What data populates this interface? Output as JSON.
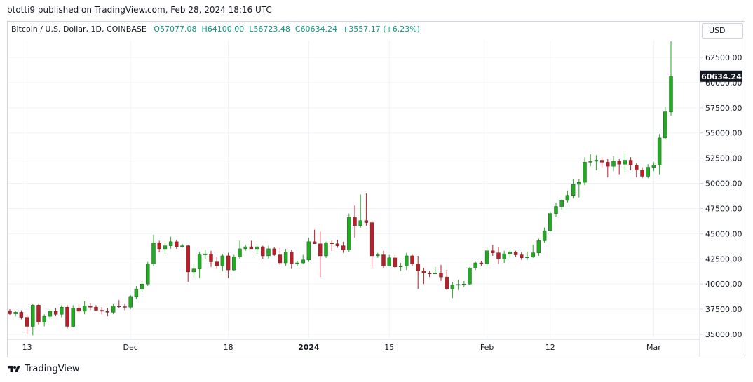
{
  "header": {
    "published": "btotti9 published on TradingView.com, Feb 28, 2024 18:16 UTC"
  },
  "legend": {
    "symbol": "Bitcoin / U.S. Dollar, 1D, COINBASE",
    "open": "O57077.08",
    "high": "H64100.00",
    "low": "L56723.48",
    "close": "C60634.24",
    "change": "+3557.17 (+6.23%)"
  },
  "currency": "USD",
  "last_price_label": "60634.24",
  "footer": {
    "brand": "TradingView"
  },
  "colors": {
    "up": "#22ab22",
    "down": "#c01b2a",
    "grid": "#f0f3fa",
    "axis": "#d1d4dc"
  },
  "chart_data": {
    "type": "candlestick",
    "title": "Bitcoin / U.S. Dollar, 1D, COINBASE",
    "y_ticks": [
      "35000.00",
      "37500.00",
      "40000.00",
      "42500.00",
      "45000.00",
      "47500.00",
      "50000.00",
      "52500.00",
      "55000.00",
      "57500.00",
      "60000.00",
      "62500.00"
    ],
    "ylim": [
      34900,
      65100
    ],
    "x_ticks": [
      {
        "label": "13",
        "day": 13
      },
      {
        "label": "Dec",
        "day": 31
      },
      {
        "label": "18",
        "day": 48
      },
      {
        "label": "2024",
        "day": 62
      },
      {
        "label": "15",
        "day": 76
      },
      {
        "label": "Feb",
        "day": 93
      },
      {
        "label": "12",
        "day": 104
      },
      {
        "label": "Mar",
        "day": 122
      }
    ],
    "xlim": [
      13,
      129
    ],
    "candles": [
      {
        "day": 10,
        "open": 37360,
        "high": 37500,
        "low": 36900,
        "close": 37050
      },
      {
        "day": 11,
        "open": 37050,
        "high": 37300,
        "low": 36800,
        "close": 37200
      },
      {
        "day": 12,
        "open": 37200,
        "high": 37400,
        "low": 36500,
        "close": 36700
      },
      {
        "day": 13,
        "open": 36700,
        "high": 37000,
        "low": 35000,
        "close": 35800
      },
      {
        "day": 14,
        "open": 35800,
        "high": 38000,
        "low": 34900,
        "close": 37900
      },
      {
        "day": 15,
        "open": 37900,
        "high": 38000,
        "low": 36000,
        "close": 36200
      },
      {
        "day": 16,
        "open": 36200,
        "high": 37000,
        "low": 35800,
        "close": 36800
      },
      {
        "day": 17,
        "open": 36800,
        "high": 37500,
        "low": 36500,
        "close": 37300
      },
      {
        "day": 18,
        "open": 37300,
        "high": 37600,
        "low": 36800,
        "close": 37000
      },
      {
        "day": 19,
        "open": 37000,
        "high": 37900,
        "low": 36700,
        "close": 37700
      },
      {
        "day": 20,
        "open": 37700,
        "high": 37900,
        "low": 35600,
        "close": 35800
      },
      {
        "day": 21,
        "open": 35800,
        "high": 37900,
        "low": 35700,
        "close": 37600
      },
      {
        "day": 22,
        "open": 37600,
        "high": 38000,
        "low": 37200,
        "close": 37300
      },
      {
        "day": 23,
        "open": 37300,
        "high": 38300,
        "low": 37000,
        "close": 37800
      },
      {
        "day": 24,
        "open": 37800,
        "high": 38100,
        "low": 37400,
        "close": 37700
      },
      {
        "day": 25,
        "open": 37700,
        "high": 37900,
        "low": 37300,
        "close": 37400
      },
      {
        "day": 26,
        "open": 37400,
        "high": 37700,
        "low": 37000,
        "close": 37300
      },
      {
        "day": 27,
        "open": 37300,
        "high": 37600,
        "low": 36800,
        "close": 37200
      },
      {
        "day": 28,
        "open": 37200,
        "high": 38000,
        "low": 37000,
        "close": 37800
      },
      {
        "day": 29,
        "open": 37800,
        "high": 38400,
        "low": 37600,
        "close": 37750
      },
      {
        "day": 30,
        "open": 37750,
        "high": 38000,
        "low": 37400,
        "close": 37700
      },
      {
        "day": 31,
        "open": 37700,
        "high": 38900,
        "low": 37500,
        "close": 38700
      },
      {
        "day": 32,
        "open": 38700,
        "high": 39800,
        "low": 38500,
        "close": 39500
      },
      {
        "day": 33,
        "open": 39500,
        "high": 40300,
        "low": 39200,
        "close": 40000
      },
      {
        "day": 34,
        "open": 40000,
        "high": 42200,
        "low": 39800,
        "close": 42000
      },
      {
        "day": 35,
        "open": 42000,
        "high": 44900,
        "low": 41800,
        "close": 44100
      },
      {
        "day": 36,
        "open": 44100,
        "high": 44300,
        "low": 43200,
        "close": 43500
      },
      {
        "day": 37,
        "open": 43500,
        "high": 44100,
        "low": 43000,
        "close": 43800
      },
      {
        "day": 38,
        "open": 43800,
        "high": 44700,
        "low": 43500,
        "close": 44200
      },
      {
        "day": 39,
        "open": 44200,
        "high": 44400,
        "low": 43500,
        "close": 43700
      },
      {
        "day": 40,
        "open": 43700,
        "high": 44000,
        "low": 43600,
        "close": 43800
      },
      {
        "day": 41,
        "open": 43800,
        "high": 43900,
        "low": 40200,
        "close": 41200
      },
      {
        "day": 42,
        "open": 41200,
        "high": 42000,
        "low": 40700,
        "close": 41500
      },
      {
        "day": 43,
        "open": 41500,
        "high": 43200,
        "low": 40600,
        "close": 42900
      },
      {
        "day": 44,
        "open": 42900,
        "high": 43400,
        "low": 42500,
        "close": 43000
      },
      {
        "day": 45,
        "open": 43000,
        "high": 43300,
        "low": 41700,
        "close": 42200
      },
      {
        "day": 46,
        "open": 42200,
        "high": 42700,
        "low": 41500,
        "close": 41800
      },
      {
        "day": 47,
        "open": 41800,
        "high": 43000,
        "low": 41300,
        "close": 42800
      },
      {
        "day": 48,
        "open": 42800,
        "high": 43100,
        "low": 40600,
        "close": 41400
      },
      {
        "day": 49,
        "open": 41400,
        "high": 42900,
        "low": 41300,
        "close": 42700
      },
      {
        "day": 50,
        "open": 42700,
        "high": 44300,
        "low": 42500,
        "close": 43500
      },
      {
        "day": 51,
        "open": 43500,
        "high": 43900,
        "low": 43300,
        "close": 43700
      },
      {
        "day": 52,
        "open": 43700,
        "high": 44300,
        "low": 43500,
        "close": 43500
      },
      {
        "day": 53,
        "open": 43500,
        "high": 43800,
        "low": 43000,
        "close": 43700
      },
      {
        "day": 54,
        "open": 43700,
        "high": 43800,
        "low": 42500,
        "close": 42800
      },
      {
        "day": 55,
        "open": 42800,
        "high": 43800,
        "low": 42500,
        "close": 43500
      },
      {
        "day": 56,
        "open": 43500,
        "high": 43700,
        "low": 42800,
        "close": 42900
      },
      {
        "day": 57,
        "open": 42900,
        "high": 43600,
        "low": 41900,
        "close": 42100
      },
      {
        "day": 58,
        "open": 42100,
        "high": 43500,
        "low": 41800,
        "close": 43200
      },
      {
        "day": 59,
        "open": 43200,
        "high": 43400,
        "low": 41500,
        "close": 42000
      },
      {
        "day": 60,
        "open": 42000,
        "high": 42300,
        "low": 41800,
        "close": 42100
      },
      {
        "day": 61,
        "open": 42100,
        "high": 42900,
        "low": 42000,
        "close": 42400
      },
      {
        "day": 62,
        "open": 42400,
        "high": 44600,
        "low": 42200,
        "close": 44200
      },
      {
        "day": 63,
        "open": 44200,
        "high": 45400,
        "low": 44000,
        "close": 44000
      },
      {
        "day": 64,
        "open": 44000,
        "high": 45200,
        "low": 40700,
        "close": 42800
      },
      {
        "day": 65,
        "open": 42800,
        "high": 44200,
        "low": 42600,
        "close": 44100
      },
      {
        "day": 66,
        "open": 44100,
        "high": 44300,
        "low": 43300,
        "close": 44000
      },
      {
        "day": 67,
        "open": 44000,
        "high": 44400,
        "low": 43600,
        "close": 43800
      },
      {
        "day": 68,
        "open": 43800,
        "high": 44200,
        "low": 43100,
        "close": 43400
      },
      {
        "day": 69,
        "open": 43400,
        "high": 47000,
        "low": 43200,
        "close": 46600
      },
      {
        "day": 70,
        "open": 46600,
        "high": 47800,
        "low": 44600,
        "close": 45800
      },
      {
        "day": 71,
        "open": 45800,
        "high": 48900,
        "low": 45600,
        "close": 46300
      },
      {
        "day": 72,
        "open": 46300,
        "high": 49000,
        "low": 45800,
        "close": 46100
      },
      {
        "day": 73,
        "open": 46100,
        "high": 46300,
        "low": 41600,
        "close": 42800
      },
      {
        "day": 74,
        "open": 42800,
        "high": 43100,
        "low": 42600,
        "close": 42900
      },
      {
        "day": 75,
        "open": 42900,
        "high": 43300,
        "low": 41600,
        "close": 41800
      },
      {
        "day": 76,
        "open": 41800,
        "high": 42900,
        "low": 41800,
        "close": 42600
      },
      {
        "day": 77,
        "open": 42600,
        "high": 42900,
        "low": 41600,
        "close": 41700
      },
      {
        "day": 78,
        "open": 41700,
        "high": 42100,
        "low": 41300,
        "close": 41800
      },
      {
        "day": 79,
        "open": 41800,
        "high": 43100,
        "low": 41400,
        "close": 42800
      },
      {
        "day": 80,
        "open": 42800,
        "high": 42900,
        "low": 41800,
        "close": 42000
      },
      {
        "day": 81,
        "open": 42000,
        "high": 42800,
        "low": 39500,
        "close": 41300
      },
      {
        "day": 82,
        "open": 41300,
        "high": 41600,
        "low": 40000,
        "close": 41100
      },
      {
        "day": 83,
        "open": 41100,
        "high": 41300,
        "low": 40700,
        "close": 41000
      },
      {
        "day": 84,
        "open": 41000,
        "high": 41700,
        "low": 41000,
        "close": 41100
      },
      {
        "day": 85,
        "open": 41100,
        "high": 41900,
        "low": 40300,
        "close": 40700
      },
      {
        "day": 86,
        "open": 40700,
        "high": 41400,
        "low": 39400,
        "close": 39500
      },
      {
        "day": 87,
        "open": 39500,
        "high": 40200,
        "low": 38600,
        "close": 39900
      },
      {
        "day": 88,
        "open": 39900,
        "high": 40400,
        "low": 39400,
        "close": 39950
      },
      {
        "day": 89,
        "open": 39950,
        "high": 40300,
        "low": 39700,
        "close": 40000
      },
      {
        "day": 90,
        "open": 40000,
        "high": 41700,
        "low": 39900,
        "close": 41600
      },
      {
        "day": 91,
        "open": 41600,
        "high": 42200,
        "low": 41400,
        "close": 42100
      },
      {
        "day": 92,
        "open": 42100,
        "high": 42300,
        "low": 41800,
        "close": 42000
      },
      {
        "day": 93,
        "open": 42000,
        "high": 43600,
        "low": 41800,
        "close": 43300
      },
      {
        "day": 94,
        "open": 43300,
        "high": 43900,
        "low": 42800,
        "close": 43100
      },
      {
        "day": 95,
        "open": 43100,
        "high": 43700,
        "low": 42000,
        "close": 42500
      },
      {
        "day": 96,
        "open": 42500,
        "high": 43300,
        "low": 42100,
        "close": 43000
      },
      {
        "day": 97,
        "open": 43000,
        "high": 43400,
        "low": 42600,
        "close": 43200
      },
      {
        "day": 98,
        "open": 43200,
        "high": 43300,
        "low": 42700,
        "close": 42900
      },
      {
        "day": 99,
        "open": 42900,
        "high": 43200,
        "low": 42400,
        "close": 42600
      },
      {
        "day": 100,
        "open": 42600,
        "high": 43200,
        "low": 42400,
        "close": 42700
      },
      {
        "day": 101,
        "open": 42700,
        "high": 43900,
        "low": 42600,
        "close": 43100
      },
      {
        "day": 102,
        "open": 43100,
        "high": 44500,
        "low": 42800,
        "close": 44300
      },
      {
        "day": 103,
        "open": 44300,
        "high": 45600,
        "low": 44100,
        "close": 45300
      },
      {
        "day": 104,
        "open": 45300,
        "high": 47200,
        "low": 45200,
        "close": 47000
      },
      {
        "day": 105,
        "open": 47000,
        "high": 48100,
        "low": 46700,
        "close": 47700
      },
      {
        "day": 106,
        "open": 47700,
        "high": 48400,
        "low": 47400,
        "close": 48300
      },
      {
        "day": 107,
        "open": 48300,
        "high": 49300,
        "low": 48100,
        "close": 48800
      },
      {
        "day": 108,
        "open": 48800,
        "high": 50400,
        "low": 48500,
        "close": 49900
      },
      {
        "day": 109,
        "open": 49900,
        "high": 50400,
        "low": 48600,
        "close": 50100
      },
      {
        "day": 110,
        "open": 50100,
        "high": 52600,
        "low": 49800,
        "close": 52100
      },
      {
        "day": 111,
        "open": 52100,
        "high": 52900,
        "low": 51700,
        "close": 52200
      },
      {
        "day": 112,
        "open": 52200,
        "high": 52800,
        "low": 51300,
        "close": 52300
      },
      {
        "day": 113,
        "open": 52300,
        "high": 52600,
        "low": 51600,
        "close": 52100
      },
      {
        "day": 114,
        "open": 52100,
        "high": 52400,
        "low": 50600,
        "close": 51700
      },
      {
        "day": 115,
        "open": 51700,
        "high": 52700,
        "low": 51200,
        "close": 52200
      },
      {
        "day": 116,
        "open": 52200,
        "high": 52400,
        "low": 50900,
        "close": 51900
      },
      {
        "day": 117,
        "open": 51900,
        "high": 53000,
        "low": 51100,
        "close": 52300
      },
      {
        "day": 118,
        "open": 52300,
        "high": 52600,
        "low": 51300,
        "close": 51800
      },
      {
        "day": 119,
        "open": 51800,
        "high": 52000,
        "low": 50600,
        "close": 51300
      },
      {
        "day": 120,
        "open": 51300,
        "high": 51600,
        "low": 50500,
        "close": 50700
      },
      {
        "day": 121,
        "open": 50700,
        "high": 51900,
        "low": 50500,
        "close": 51600
      },
      {
        "day": 122,
        "open": 51600,
        "high": 52100,
        "low": 51200,
        "close": 51800
      },
      {
        "day": 123,
        "open": 51800,
        "high": 54900,
        "low": 50900,
        "close": 54500
      },
      {
        "day": 124,
        "open": 54500,
        "high": 57600,
        "low": 54400,
        "close": 57100
      },
      {
        "day": 125,
        "open": 57077,
        "high": 64100,
        "low": 56723,
        "close": 60634
      }
    ]
  }
}
